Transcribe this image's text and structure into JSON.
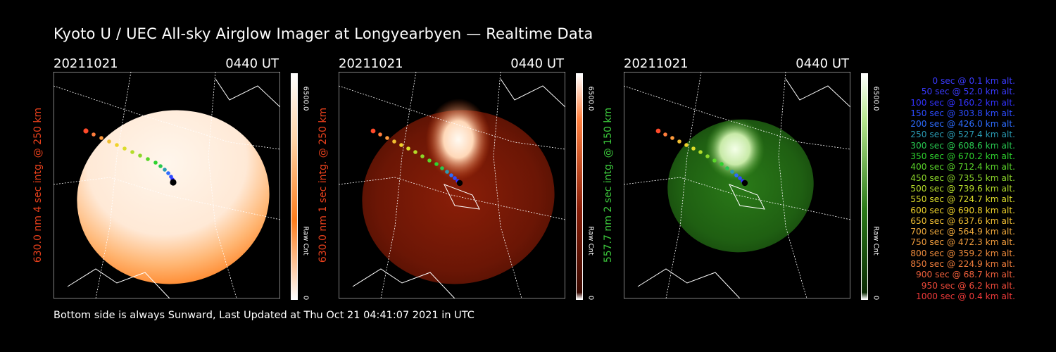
{
  "title": "Kyoto U / UEC All-sky Airglow Imager at Longyearbyen — Realtime Data",
  "footer": "Bottom side is always Sunward, Last Updated at Thu Oct 21 04:41:07 2021 in UTC",
  "panels": [
    {
      "date": "20211021",
      "time": "0440 UT",
      "ylabel": "630.0 nm  4 sec intg. @ 250 km",
      "ylabel_color": "#e8401c",
      "cbar_max": "6500.0",
      "cbar_unit": "Raw Cnt",
      "cbar_min": "0",
      "palette": "white-orange"
    },
    {
      "date": "20211021",
      "time": "0440 UT",
      "ylabel": "630.0 nm  1 sec intg. @ 250 km",
      "ylabel_color": "#e8401c",
      "cbar_max": "6500.0",
      "cbar_unit": "Raw Cnt",
      "cbar_min": "0",
      "palette": "red"
    },
    {
      "date": "20211021",
      "time": "0440 UT",
      "ylabel": "557.7 nm  2 sec intg. @ 150 km",
      "ylabel_color": "#3cc83c",
      "cbar_max": "6500.0",
      "cbar_unit": "Raw Cnt",
      "cbar_min": "0",
      "palette": "green"
    }
  ],
  "legend": [
    {
      "text": "0 sec @    0.1 km alt.",
      "color": "#3a3aff"
    },
    {
      "text": "50 sec @   52.0 km alt.",
      "color": "#3a3aff"
    },
    {
      "text": "100 sec @  160.2 km alt.",
      "color": "#3232ff"
    },
    {
      "text": "150 sec @  303.8 km alt.",
      "color": "#2d4cff"
    },
    {
      "text": "200 sec @  426.0 km alt.",
      "color": "#2d6cff"
    },
    {
      "text": "250 sec @  527.4 km alt.",
      "color": "#2a9bb4"
    },
    {
      "text": "300 sec @  608.6 km alt.",
      "color": "#28c850"
    },
    {
      "text": "350 sec @  670.2 km alt.",
      "color": "#2ed22e"
    },
    {
      "text": "400 sec @  712.4 km alt.",
      "color": "#5ad62a"
    },
    {
      "text": "450 sec @  735.5 km alt.",
      "color": "#8cd62a"
    },
    {
      "text": "500 sec @  739.6 km alt.",
      "color": "#b4dc2a"
    },
    {
      "text": "550 sec @  724.7 km alt.",
      "color": "#dcdc2a"
    },
    {
      "text": "600 sec @  690.8 km alt.",
      "color": "#f0d22a"
    },
    {
      "text": "650 sec @  637.6 km alt.",
      "color": "#f0be32"
    },
    {
      "text": "700 sec @  564.9 km alt.",
      "color": "#f0aa3c"
    },
    {
      "text": "750 sec @  472.3 km alt.",
      "color": "#f09b3c"
    },
    {
      "text": "800 sec @  359.2 km alt.",
      "color": "#f08c3c"
    },
    {
      "text": "850 sec @  224.9 km alt.",
      "color": "#f07d3c"
    },
    {
      "text": "900 sec @   68.7 km alt.",
      "color": "#f0603c"
    },
    {
      "text": "950 sec @    6.2 km alt.",
      "color": "#f04a3a"
    },
    {
      "text": "1000 sec @    0.4 km alt.",
      "color": "#f03a3a"
    }
  ]
}
